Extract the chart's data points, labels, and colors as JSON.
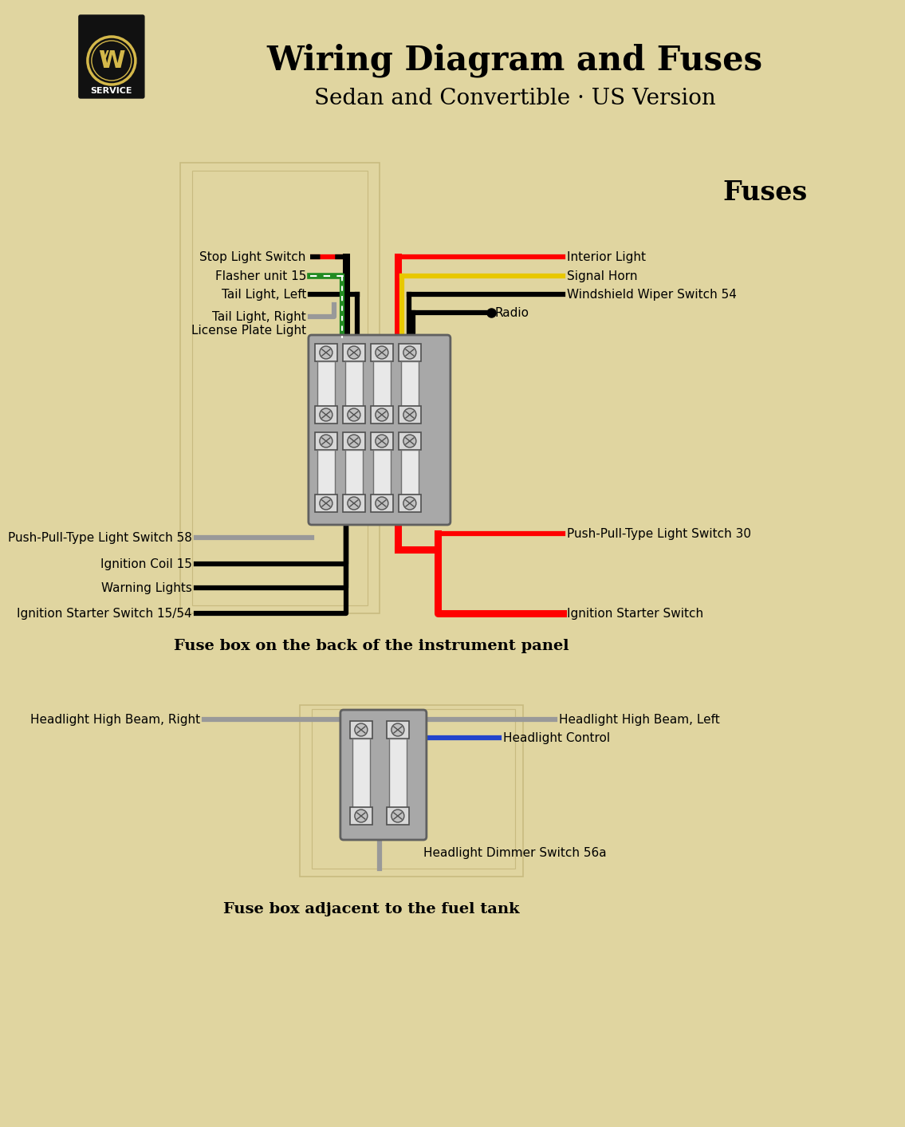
{
  "title": "Wiring Diagram and Fuses",
  "subtitle": "Sedan and Convertible · US Version",
  "fuses_label": "Fuses",
  "bg_color": "#e0d5a0",
  "title_fontsize": 30,
  "subtitle_fontsize": 20,
  "fuses_fontsize": 24,
  "label_fontsize": 11,
  "caption1": "Fuse box on the back of the instrument panel",
  "caption2": "Fuse box adjacent to the fuel tank",
  "left_labels_top": [
    "Stop Light Switch",
    "Flasher unit 15",
    "Tail Light, Left",
    "Tail Light, Right\nLicense Plate Light"
  ],
  "right_labels_top": [
    "Interior Light",
    "Signal Horn",
    "Windshield Wiper Switch 54",
    "Radio"
  ],
  "left_labels_bottom": [
    "Push-Pull-Type Light Switch 58",
    "Ignition Coil 15",
    "Warning Lights",
    "Ignition Starter Switch 15/54"
  ],
  "right_labels_bottom": [
    "Push-Pull-Type Light Switch 30",
    "Ignition Starter Switch"
  ],
  "left_labels_fuse2": [
    "Headlight High Beam, Right"
  ],
  "right_labels_fuse2": [
    "Headlight High Beam, Left",
    "Headlight Control"
  ],
  "bottom_label_fuse2": "Headlight Dimmer Switch 56a"
}
